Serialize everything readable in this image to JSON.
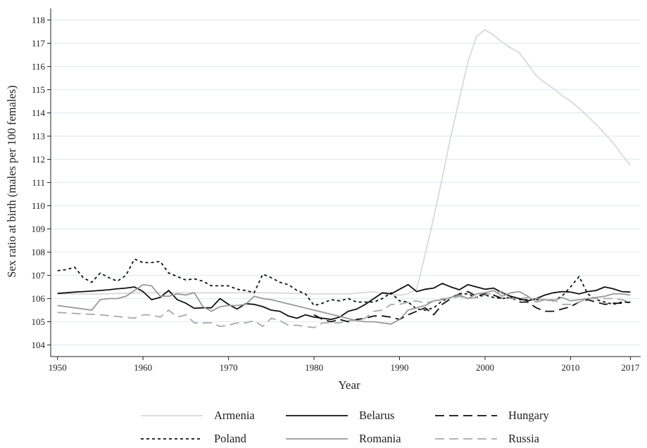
{
  "chart_data": {
    "type": "line",
    "title": "",
    "xlabel": "Year",
    "ylabel": "Sex ratio at birth (males per 100 females)",
    "xlim": [
      1949.2,
      2018.2
    ],
    "ylim": [
      103.5,
      118.5
    ],
    "xticks": [
      "1950",
      "1960",
      "1970",
      "1980",
      "1990",
      "2000",
      "2010",
      "2017"
    ],
    "yticks": [
      "104",
      "105",
      "106",
      "107",
      "108",
      "109",
      "110",
      "111",
      "112",
      "113",
      "114",
      "115",
      "116",
      "117",
      "118"
    ],
    "grid": "horizontal",
    "legend_position": "bottom",
    "series": [
      {
        "name": "Armenia",
        "color": "#d9d9d9",
        "dash": "solid",
        "x": [
          1950,
          1955,
          1960,
          1965,
          1970,
          1975,
          1980,
          1984,
          1987,
          1988,
          1990,
          1991,
          1992,
          1993,
          1994,
          1995,
          1996,
          1997,
          1998,
          1999,
          2000,
          2001,
          2002,
          2003,
          2004,
          2005,
          2006,
          2007,
          2008,
          2009,
          2010,
          2011,
          2012,
          2013,
          2014,
          2015,
          2016,
          2017
        ],
        "values": [
          106.2,
          106.2,
          106.25,
          106.25,
          106.25,
          106.25,
          106.2,
          106.2,
          106.3,
          106.2,
          106.15,
          106.2,
          106.4,
          107.9,
          109.5,
          111.2,
          113.0,
          114.6,
          116.2,
          117.3,
          117.58,
          117.35,
          117.05,
          116.8,
          116.6,
          116.1,
          115.6,
          115.3,
          115.05,
          114.75,
          114.5,
          114.2,
          113.85,
          113.5,
          113.1,
          112.7,
          112.2,
          111.75
        ]
      },
      {
        "name": "Belarus",
        "color": "#111111",
        "dash": "solid",
        "x": [
          1950,
          1951,
          1952,
          1953,
          1954,
          1955,
          1956,
          1957,
          1958,
          1959,
          1960,
          1961,
          1962,
          1963,
          1964,
          1965,
          1966,
          1967,
          1968,
          1969,
          1970,
          1971,
          1972,
          1973,
          1974,
          1975,
          1976,
          1977,
          1978,
          1979,
          1980,
          1981,
          1982,
          1983,
          1984,
          1985,
          1986,
          1987,
          1988,
          1989,
          1990,
          1991,
          1992,
          1993,
          1994,
          1995,
          1996,
          1997,
          1998,
          1999,
          2000,
          2001,
          2002,
          2003,
          2004,
          2005,
          2006,
          2007,
          2008,
          2009,
          2010,
          2011,
          2012,
          2013,
          2014,
          2015,
          2016,
          2017
        ],
        "values": [
          106.22,
          106.25,
          106.28,
          106.3,
          106.32,
          106.35,
          106.38,
          106.42,
          106.45,
          106.5,
          106.3,
          105.95,
          106.05,
          106.35,
          105.95,
          105.8,
          105.58,
          105.6,
          105.6,
          106.0,
          105.75,
          105.55,
          105.78,
          105.75,
          105.65,
          105.5,
          105.45,
          105.25,
          105.15,
          105.3,
          105.2,
          105.15,
          105.1,
          105.2,
          105.45,
          105.55,
          105.75,
          106.0,
          106.25,
          106.2,
          106.4,
          106.6,
          106.3,
          106.4,
          106.45,
          106.65,
          106.5,
          106.38,
          106.6,
          106.5,
          106.4,
          106.45,
          106.25,
          106.1,
          106.0,
          105.9,
          106.0,
          106.15,
          106.25,
          106.3,
          106.28,
          106.2,
          106.3,
          106.35,
          106.5,
          106.42,
          106.3,
          106.28
        ]
      },
      {
        "name": "Hungary",
        "color": "#111111",
        "dash": "long",
        "x": [
          1980,
          1981,
          1982,
          1983,
          1984,
          1985,
          1986,
          1987,
          1988,
          1989,
          1990,
          1991,
          1992,
          1993,
          1994,
          1995,
          1996,
          1997,
          1998,
          1999,
          2000,
          2001,
          2002,
          2003,
          2004,
          2005,
          2006,
          2007,
          2008,
          2009,
          2010,
          2011,
          2012,
          2013,
          2014,
          2015,
          2016,
          2017
        ],
        "values": [
          105.3,
          105.1,
          105.0,
          105.1,
          105.0,
          105.1,
          105.15,
          105.25,
          105.25,
          105.2,
          105.1,
          105.3,
          105.45,
          105.6,
          105.3,
          105.75,
          106.0,
          106.2,
          106.3,
          106.1,
          106.2,
          106.15,
          106.0,
          106.05,
          105.85,
          105.85,
          105.6,
          105.45,
          105.45,
          105.55,
          105.65,
          105.85,
          105.95,
          105.85,
          105.75,
          105.8,
          105.8,
          105.85
        ]
      },
      {
        "name": "Poland",
        "color": "#111111",
        "dash": "short",
        "x": [
          1950,
          1951,
          1952,
          1953,
          1954,
          1955,
          1956,
          1957,
          1958,
          1959,
          1960,
          1961,
          1962,
          1963,
          1964,
          1965,
          1966,
          1967,
          1968,
          1969,
          1970,
          1971,
          1972,
          1973,
          1974,
          1975,
          1976,
          1977,
          1978,
          1979,
          1980,
          1981,
          1982,
          1983,
          1984,
          1985,
          1986,
          1987,
          1988,
          1989,
          1990,
          1991,
          1992,
          1993,
          1994,
          1995,
          1996,
          1997,
          1998,
          1999,
          2000,
          2001,
          2002,
          2003,
          2004,
          2005,
          2006,
          2007,
          2008,
          2009,
          2010,
          2011,
          2012,
          2013,
          2014,
          2015,
          2016,
          2017
        ],
        "values": [
          107.2,
          107.25,
          107.35,
          106.9,
          106.7,
          107.1,
          106.9,
          106.75,
          107.0,
          107.7,
          107.55,
          107.55,
          107.6,
          107.1,
          106.95,
          106.8,
          106.85,
          106.75,
          106.55,
          106.55,
          106.55,
          106.4,
          106.35,
          106.25,
          107.05,
          106.9,
          106.7,
          106.6,
          106.35,
          106.2,
          105.7,
          105.8,
          105.95,
          105.9,
          106.0,
          105.85,
          105.85,
          105.85,
          106.0,
          106.25,
          105.9,
          105.85,
          105.55,
          105.5,
          105.6,
          105.9,
          106.05,
          106.2,
          106.2,
          106.05,
          106.15,
          106.05,
          106.0,
          106.05,
          105.95,
          105.95,
          105.95,
          105.95,
          105.9,
          106.1,
          106.5,
          106.95,
          106.2,
          105.95,
          105.85,
          105.75,
          105.85,
          105.85
        ]
      },
      {
        "name": "Romania",
        "color": "#999999",
        "dash": "solid",
        "x": [
          1950,
          1954,
          1955,
          1956,
          1957,
          1958,
          1959,
          1960,
          1961,
          1962,
          1963,
          1964,
          1965,
          1966,
          1967,
          1968,
          1969,
          1970,
          1971,
          1972,
          1973,
          1974,
          1975,
          1980,
          1985,
          1986,
          1987,
          1988,
          1989,
          1990,
          1991,
          1992,
          1993,
          1994,
          1995,
          1996,
          1997,
          1998,
          1999,
          2000,
          2001,
          2002,
          2003,
          2004,
          2005,
          2006,
          2007,
          2008,
          2009,
          2010,
          2011,
          2012,
          2013,
          2014,
          2015,
          2016,
          2017
        ],
        "values": [
          105.7,
          105.5,
          105.95,
          106.0,
          106.0,
          106.1,
          106.35,
          106.6,
          106.55,
          106.1,
          106.1,
          106.2,
          106.15,
          106.25,
          105.65,
          105.45,
          105.65,
          105.7,
          105.7,
          105.75,
          106.1,
          106.0,
          105.95,
          105.5,
          105.05,
          105.0,
          105.0,
          104.95,
          104.9,
          105.1,
          105.5,
          105.6,
          105.7,
          105.9,
          105.95,
          106.05,
          106.15,
          106.0,
          106.2,
          106.25,
          106.35,
          106.1,
          106.25,
          106.3,
          106.1,
          105.85,
          105.95,
          105.9,
          106.05,
          105.9,
          105.95,
          106.0,
          106.05,
          106.1,
          106.2,
          106.2,
          106.15
        ]
      },
      {
        "name": "Russia",
        "color": "#aaaaaa",
        "dash": "long",
        "x": [
          1950,
          1955,
          1959,
          1960,
          1961,
          1962,
          1963,
          1964,
          1965,
          1966,
          1967,
          1968,
          1969,
          1970,
          1971,
          1972,
          1973,
          1974,
          1975,
          1976,
          1977,
          1978,
          1979,
          1980,
          1981,
          1982,
          1983,
          1984,
          1985,
          1986,
          1987,
          1988,
          1989,
          1990,
          1991,
          1992,
          1993,
          1994,
          1995,
          1996,
          1997,
          1998,
          1999,
          2000,
          2001,
          2002,
          2003,
          2004,
          2005,
          2006,
          2007,
          2008,
          2009,
          2010,
          2011,
          2012,
          2013,
          2014,
          2015,
          2016,
          2017
        ],
        "values": [
          105.4,
          105.3,
          105.15,
          105.3,
          105.3,
          105.2,
          105.5,
          105.2,
          105.3,
          104.95,
          104.95,
          104.95,
          104.8,
          104.85,
          104.95,
          104.95,
          105.05,
          104.8,
          105.15,
          105.05,
          104.85,
          104.85,
          104.8,
          104.75,
          104.95,
          104.95,
          104.95,
          105.05,
          105.05,
          105.15,
          105.45,
          105.5,
          105.75,
          105.75,
          105.85,
          105.9,
          105.8,
          105.9,
          106.0,
          106.0,
          106.1,
          106.0,
          106.05,
          106.15,
          106.25,
          106.3,
          106.0,
          106.0,
          106.05,
          106.0,
          105.95,
          105.95,
          105.75,
          105.75,
          105.85,
          106.0,
          106.0,
          106.0,
          106.0,
          105.95,
          105.85
        ]
      }
    ]
  }
}
